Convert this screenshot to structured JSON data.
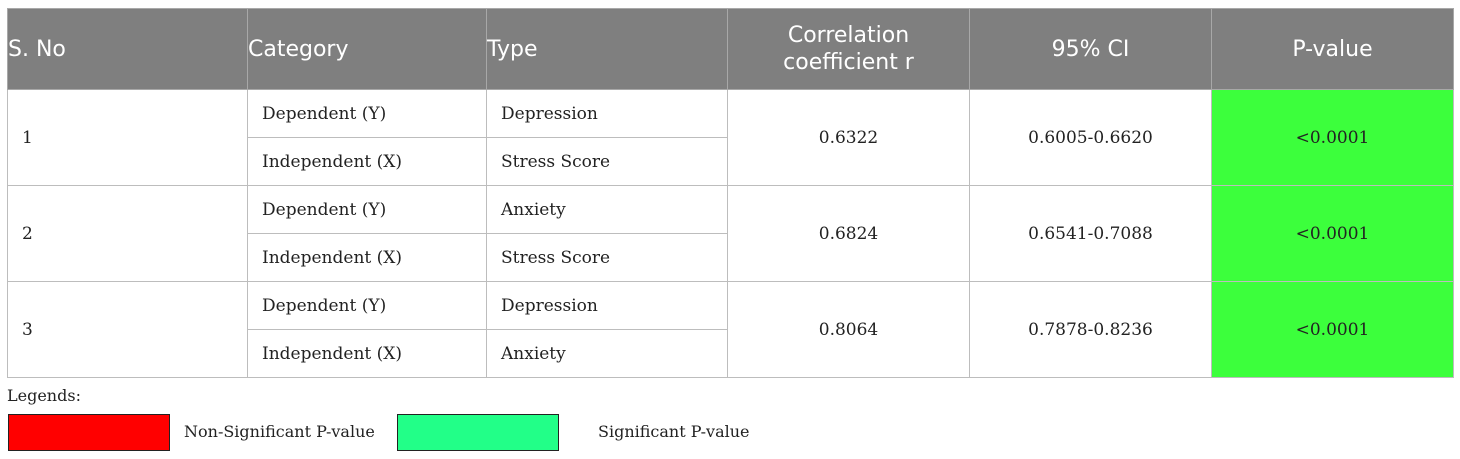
{
  "table": {
    "headers": [
      "S. No",
      "Category",
      "Type",
      "Correlation coefficient r",
      "95% CI",
      "P-value"
    ],
    "groups": [
      {
        "sno": "1",
        "rows": [
          {
            "category": "Dependent (Y)",
            "type": "Depression"
          },
          {
            "category": "Independent (X)",
            "type": "Stress Score"
          }
        ],
        "r": "0.6322",
        "ci": "0.6005-0.6620",
        "p": "<0.0001"
      },
      {
        "sno": "2",
        "rows": [
          {
            "category": "Dependent (Y)",
            "type": "Anxiety"
          },
          {
            "category": "Independent (X)",
            "type": "Stress Score"
          }
        ],
        "r": "0.6824",
        "ci": "0.6541-0.7088",
        "p": "<0.0001"
      },
      {
        "sno": "3",
        "rows": [
          {
            "category": "Dependent (Y)",
            "type": "Depression"
          },
          {
            "category": "Independent (X)",
            "type": "Anxiety"
          }
        ],
        "r": "0.8064",
        "ci": "0.7878-0.8236",
        "p": "<0.0001"
      }
    ]
  },
  "legend": {
    "title": "Legends:",
    "items": [
      {
        "label": "Non-Significant P-value",
        "color": "#ff0000"
      },
      {
        "label": "Significant P-value",
        "color": "#22ff88"
      }
    ]
  },
  "colors": {
    "header_bg": "#7f7f7f",
    "significant_cell": "#3cff3c"
  }
}
